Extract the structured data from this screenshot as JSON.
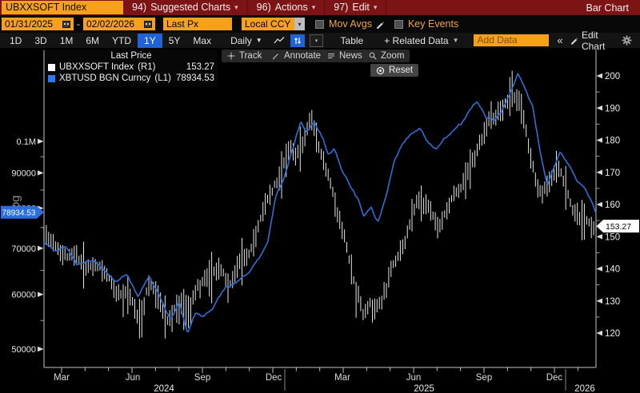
{
  "window": {
    "security": "UBXXSOFT Index",
    "menu": [
      {
        "num": "94)",
        "label": "Suggested Charts"
      },
      {
        "num": "96)",
        "label": "Actions"
      },
      {
        "num": "97)",
        "label": "Edit"
      }
    ],
    "right_label": "Bar Chart"
  },
  "controls": {
    "date_from": "01/31/2025",
    "date_sep": "-",
    "date_to": "02/02/2026",
    "field": "Last Px",
    "currency": "Local CCY",
    "mov_avgs_label": "Mov Avgs",
    "key_events_label": "Key Events"
  },
  "toolbar": {
    "ranges": [
      "1D",
      "3D",
      "1M",
      "6M",
      "YTD",
      "1Y",
      "5Y",
      "Max"
    ],
    "selected_range": "1Y",
    "period": "Daily",
    "table_label": "Table",
    "related_label": "+ Related Data",
    "add_data_placeholder": "Add Data",
    "collapse": "«",
    "edit_chart_label": "Edit Chart"
  },
  "chart_tools": {
    "track": "Track",
    "annotate": "Annotate",
    "news": "News",
    "zoom": "Zoom",
    "reset": "Reset"
  },
  "legend": {
    "title": "Last Price",
    "series": [
      {
        "name": "UBXXSOFT Index",
        "axis": "(R1)",
        "value": "153.27",
        "color": "#ffffff"
      },
      {
        "name": "XBTUSD BGN Curncy",
        "axis": "(L1)",
        "value": "78934.53",
        "color": "#2d7af0"
      }
    ]
  },
  "chart_data": {
    "type": "line",
    "description": "Overlay: UBXXSOFT Index (white daily hi-lo bars, right linear axis 120-200) vs XBTUSD BGN Curncy (blue line, left log axis 50000-0.1M), Feb 2024 - Feb 2026",
    "x_axis": {
      "first_tick_frac": 0.0319,
      "month_step_frac": 0.042513,
      "month_labels": [
        {
          "label": "Mar",
          "t": 0.0319
        },
        {
          "label": "Jun",
          "t": 0.1609
        },
        {
          "label": "Sep",
          "t": 0.287
        },
        {
          "label": "Dec",
          "t": 0.416
        },
        {
          "label": "Mar",
          "t": 0.5406
        },
        {
          "label": "Jun",
          "t": 0.6696
        },
        {
          "label": "Sep",
          "t": 0.7971
        },
        {
          "label": "Dec",
          "t": 0.9246
        }
      ],
      "year_labels": [
        {
          "label": "2024",
          "t": 0.2174
        },
        {
          "label": "2025",
          "t": 0.6884
        },
        {
          "label": "2026",
          "t": 0.9797
        }
      ],
      "year_separators_t": [
        0.4362,
        0.9449
      ]
    },
    "left_axis": {
      "type": "log",
      "scale_label": "Log",
      "ticks": [
        {
          "value": 50000,
          "label": "50000"
        },
        {
          "value": 60000,
          "label": "60000"
        },
        {
          "value": 70000,
          "label": "70000"
        },
        {
          "value": 80000,
          "label": "80000"
        },
        {
          "value": 90000,
          "label": "90000"
        },
        {
          "value": 100000,
          "label": "0.1M"
        }
      ],
      "minor_ticks": [
        55000,
        65000,
        75000,
        85000,
        95000
      ],
      "last_value": 78934.53,
      "last_label": "78934.53",
      "badge_color": "#2a6ee0"
    },
    "right_axis": {
      "type": "linear",
      "ticks": [
        120,
        130,
        140,
        150,
        160,
        170,
        180,
        190,
        200
      ],
      "minor_ticks": [
        125,
        135,
        145,
        155,
        165,
        175,
        185,
        195
      ],
      "last_value": 153.27,
      "last_label": "153.27",
      "badge_color": "#ffffff"
    },
    "series": [
      {
        "name": "UBXXSOFT Index",
        "axis": "R1",
        "style": "bars",
        "color": "#f2f2f2",
        "keypoints": [
          [
            0,
            151
          ],
          [
            0.02,
            149
          ],
          [
            0.04,
            146
          ],
          [
            0.06,
            143.5
          ],
          [
            0.08,
            141
          ],
          [
            0.1,
            142
          ],
          [
            0.12,
            137
          ],
          [
            0.14,
            133
          ],
          [
            0.16,
            129
          ],
          [
            0.175,
            124.5
          ],
          [
            0.19,
            136
          ],
          [
            0.205,
            133
          ],
          [
            0.225,
            124
          ],
          [
            0.24,
            129
          ],
          [
            0.26,
            127.5
          ],
          [
            0.28,
            134
          ],
          [
            0.3,
            137
          ],
          [
            0.32,
            139
          ],
          [
            0.335,
            135
          ],
          [
            0.35,
            142
          ],
          [
            0.37,
            146
          ],
          [
            0.39,
            155
          ],
          [
            0.41,
            165
          ],
          [
            0.43,
            172
          ],
          [
            0.445,
            179
          ],
          [
            0.455,
            175
          ],
          [
            0.47,
            181
          ],
          [
            0.485,
            186
          ],
          [
            0.5,
            178
          ],
          [
            0.515,
            170
          ],
          [
            0.53,
            159
          ],
          [
            0.55,
            146
          ],
          [
            0.565,
            133
          ],
          [
            0.578,
            126
          ],
          [
            0.59,
            128.5
          ],
          [
            0.6,
            125
          ],
          [
            0.615,
            132
          ],
          [
            0.63,
            140
          ],
          [
            0.65,
            149
          ],
          [
            0.665,
            157
          ],
          [
            0.68,
            162
          ],
          [
            0.7,
            160
          ],
          [
            0.715,
            153
          ],
          [
            0.73,
            158
          ],
          [
            0.75,
            164
          ],
          [
            0.77,
            171
          ],
          [
            0.79,
            178
          ],
          [
            0.81,
            186
          ],
          [
            0.83,
            189
          ],
          [
            0.845,
            193
          ],
          [
            0.86,
            190
          ],
          [
            0.875,
            181
          ],
          [
            0.89,
            167
          ],
          [
            0.9,
            163
          ],
          [
            0.915,
            166
          ],
          [
            0.93,
            174
          ],
          [
            0.945,
            168
          ],
          [
            0.96,
            161
          ],
          [
            0.975,
            157
          ],
          [
            0.99,
            155
          ],
          [
            1,
            153.3
          ]
        ]
      },
      {
        "name": "XBTUSD BGN Curncy",
        "axis": "L1",
        "style": "line",
        "color": "#2f6fd6",
        "keypoints": [
          [
            0,
            71500
          ],
          [
            0.02,
            69500
          ],
          [
            0.04,
            70500
          ],
          [
            0.06,
            66000
          ],
          [
            0.09,
            67500
          ],
          [
            0.11,
            65000
          ],
          [
            0.13,
            62500
          ],
          [
            0.15,
            64000
          ],
          [
            0.17,
            60000
          ],
          [
            0.19,
            63500
          ],
          [
            0.21,
            59500
          ],
          [
            0.23,
            55000
          ],
          [
            0.245,
            58500
          ],
          [
            0.26,
            52500
          ],
          [
            0.275,
            56500
          ],
          [
            0.29,
            55500
          ],
          [
            0.31,
            58000
          ],
          [
            0.33,
            61500
          ],
          [
            0.35,
            62500
          ],
          [
            0.37,
            64500
          ],
          [
            0.39,
            67500
          ],
          [
            0.405,
            71000
          ],
          [
            0.42,
            83000
          ],
          [
            0.435,
            88000
          ],
          [
            0.45,
            97000
          ],
          [
            0.465,
            107000
          ],
          [
            0.475,
            103000
          ],
          [
            0.49,
            106500
          ],
          [
            0.505,
            101000
          ],
          [
            0.515,
            95500
          ],
          [
            0.525,
            97500
          ],
          [
            0.54,
            91000
          ],
          [
            0.555,
            86000
          ],
          [
            0.568,
            82500
          ],
          [
            0.58,
            78000
          ],
          [
            0.592,
            80500
          ],
          [
            0.605,
            76500
          ],
          [
            0.62,
            83500
          ],
          [
            0.635,
            93500
          ],
          [
            0.65,
            99000
          ],
          [
            0.665,
            102500
          ],
          [
            0.68,
            104500
          ],
          [
            0.695,
            99500
          ],
          [
            0.71,
            97000
          ],
          [
            0.725,
            100500
          ],
          [
            0.74,
            103500
          ],
          [
            0.755,
            105500
          ],
          [
            0.77,
            110500
          ],
          [
            0.785,
            114500
          ],
          [
            0.8,
            109000
          ],
          [
            0.815,
            107500
          ],
          [
            0.83,
            111000
          ],
          [
            0.845,
            118000
          ],
          [
            0.858,
            125500
          ],
          [
            0.87,
            120000
          ],
          [
            0.885,
            112500
          ],
          [
            0.9,
            95500
          ],
          [
            0.912,
            85500
          ],
          [
            0.925,
            91500
          ],
          [
            0.935,
            97000
          ],
          [
            0.95,
            93000
          ],
          [
            0.965,
            87500
          ],
          [
            0.98,
            85500
          ],
          [
            0.99,
            82500
          ],
          [
            1,
            78934.53
          ]
        ]
      }
    ]
  }
}
